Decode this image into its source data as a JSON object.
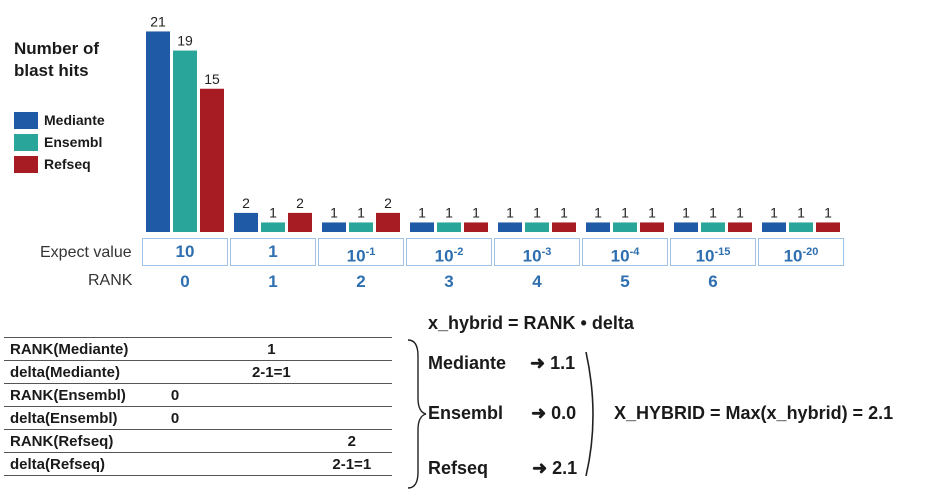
{
  "chart_data": {
    "type": "bar",
    "ylabel": "Number of\nblast hits",
    "categories": [
      "10",
      "1",
      "10-1",
      "10-2",
      "10-3",
      "10-4",
      "10-15",
      "10-20"
    ],
    "category_display": [
      {
        "base": "10",
        "exp": ""
      },
      {
        "base": "1",
        "exp": ""
      },
      {
        "base": "10",
        "exp": "-1"
      },
      {
        "base": "10",
        "exp": "-2"
      },
      {
        "base": "10",
        "exp": "-3"
      },
      {
        "base": "10",
        "exp": "-4"
      },
      {
        "base": "10",
        "exp": "-15"
      },
      {
        "base": "10",
        "exp": "-20"
      }
    ],
    "series": [
      {
        "name": "Mediante",
        "color": "#1f5aa6",
        "values": [
          21,
          2,
          1,
          1,
          1,
          1,
          1,
          1
        ]
      },
      {
        "name": "Ensembl",
        "color": "#2aa59a",
        "values": [
          19,
          1,
          1,
          1,
          1,
          1,
          1,
          1
        ]
      },
      {
        "name": "Refseq",
        "color": "#a61c22",
        "values": [
          15,
          2,
          2,
          1,
          1,
          1,
          1,
          1
        ]
      }
    ],
    "bar_heights_note_unused": null,
    "legend": "left",
    "xlabel": "Expect value",
    "rank_label": "RANK",
    "ranks": [
      "0",
      "1",
      "2",
      "3",
      "4",
      "5",
      "6"
    ]
  },
  "formula": "x_hybrid  =  RANK • delta",
  "table": [
    {
      "key": "RANK(Mediante)",
      "c1": "",
      "c2": "1",
      "c3": ""
    },
    {
      "key": "delta(Mediante)",
      "c1": "",
      "c2": "2-1=1",
      "c3": ""
    },
    {
      "key": "RANK(Ensembl)",
      "c1": "0",
      "c2": "",
      "c3": ""
    },
    {
      "key": "delta(Ensembl)",
      "c1": "0",
      "c2": "",
      "c3": ""
    },
    {
      "key": "RANK(Refseq)",
      "c1": "",
      "c2": "",
      "c3": "2"
    },
    {
      "key": "delta(Refseq)",
      "c1": "",
      "c2": "",
      "c3": "2-1=1"
    }
  ],
  "results": [
    {
      "name": "Mediante",
      "arrow": "➜",
      "value": "1.1"
    },
    {
      "name": "Ensembl",
      "arrow": "➜",
      "value": "0.0"
    },
    {
      "name": "Refseq",
      "arrow": "➜",
      "value": "2.1"
    }
  ],
  "final": "X_HYBRID  =  Max(x_hybrid) = 2.1"
}
